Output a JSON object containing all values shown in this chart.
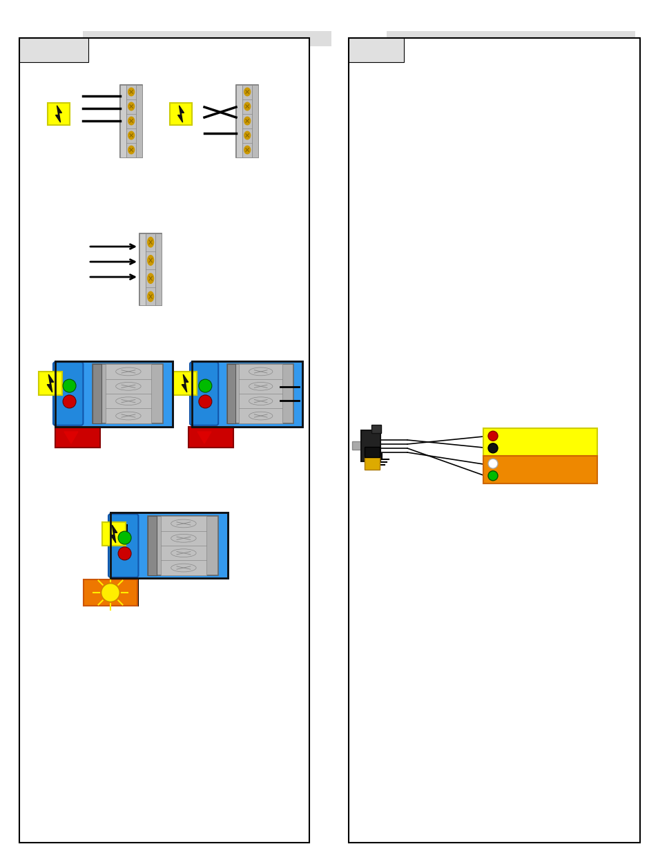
{
  "bg": "#ffffff",
  "gray_header": "#d8d8d8",
  "panel_border": "#000000",
  "tab_gray": "#e0e0e0",
  "terminal_body": "#b0b0b0",
  "terminal_rail": "#c8c8c8",
  "screw_gold": "#cc9900",
  "badge_yellow": "#ffff00",
  "blue_body": "#3399ee",
  "relay_gray": "#b0b0b0",
  "led_green": "#00bb00",
  "led_red": "#cc0000",
  "led_white": "#ffffff",
  "led_black": "#111111",
  "orange_box": "#ee8800",
  "yellow_box": "#ffff00",
  "wire_dark": "#111111",
  "strobe_orange": "#ee7700",
  "connector_black": "#222222",
  "connector_yellow": "#ddaa00"
}
